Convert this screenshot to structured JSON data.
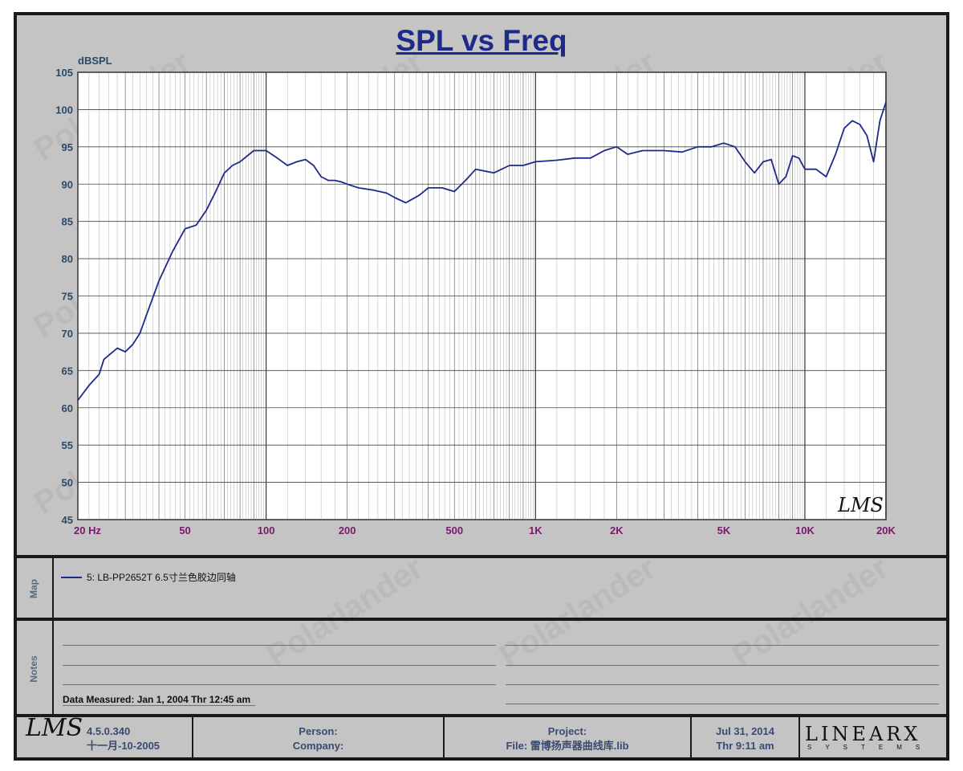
{
  "chart_data": {
    "type": "line",
    "title": "SPL vs Freq",
    "ylabel": "dBSPL",
    "xlabel": "",
    "xscale": "log",
    "xlim": [
      20,
      20000
    ],
    "ylim": [
      45,
      105
    ],
    "yticks": [
      45,
      50,
      55,
      60,
      65,
      70,
      75,
      80,
      85,
      90,
      95,
      100,
      105
    ],
    "xticks": [
      {
        "value": 20,
        "label": "20  Hz"
      },
      {
        "value": 50,
        "label": "50"
      },
      {
        "value": 100,
        "label": "100"
      },
      {
        "value": 200,
        "label": "200"
      },
      {
        "value": 500,
        "label": "500"
      },
      {
        "value": 1000,
        "label": "1K"
      },
      {
        "value": 2000,
        "label": "2K"
      },
      {
        "value": 5000,
        "label": "5K"
      },
      {
        "value": 10000,
        "label": "10K"
      },
      {
        "value": 20000,
        "label": "20K"
      }
    ],
    "grid": true,
    "watermark_logo": "LMS",
    "series": [
      {
        "name": "5: LB-PP2652T 6.5寸兰色胶边同轴",
        "color": "#1e2a8a",
        "x": [
          20,
          22,
          24,
          25,
          27,
          28,
          30,
          32,
          34,
          36,
          40,
          45,
          50,
          55,
          60,
          65,
          70,
          75,
          80,
          90,
          100,
          110,
          120,
          130,
          140,
          150,
          160,
          170,
          180,
          190,
          200,
          220,
          250,
          280,
          300,
          330,
          370,
          400,
          450,
          500,
          550,
          600,
          700,
          800,
          900,
          1000,
          1200,
          1400,
          1600,
          1800,
          2000,
          2200,
          2500,
          3000,
          3500,
          4000,
          4500,
          5000,
          5500,
          6000,
          6500,
          7000,
          7500,
          8000,
          8500,
          9000,
          9500,
          10000,
          11000,
          12000,
          13000,
          14000,
          15000,
          16000,
          17000,
          18000,
          19000,
          20000
        ],
        "y": [
          61,
          63,
          64.5,
          66.5,
          67.5,
          68,
          67.5,
          68.5,
          70,
          72.5,
          77,
          81,
          84,
          84.5,
          86.5,
          89,
          91.5,
          92.5,
          93,
          94.5,
          94.5,
          93.5,
          92.5,
          93,
          93.3,
          92.5,
          91,
          90.5,
          90.5,
          90.3,
          90,
          89.5,
          89.2,
          88.8,
          88.2,
          87.5,
          88.5,
          89.5,
          89.5,
          89,
          90.5,
          92,
          91.5,
          92.5,
          92.5,
          93,
          93.2,
          93.5,
          93.5,
          94.5,
          95,
          94,
          94.5,
          94.5,
          94.3,
          95,
          95,
          95.5,
          95,
          93,
          91.5,
          93,
          93.3,
          90,
          91,
          93.8,
          93.5,
          92,
          92,
          91,
          94,
          97.5,
          98.5,
          98,
          96.5,
          93,
          98.5,
          101
        ]
      }
    ]
  },
  "map": {
    "label": "Map",
    "legend_entry": "5: LB-PP2652T 6.5寸兰色胶边同轴"
  },
  "notes": {
    "label": "Notes",
    "measured": "Data Measured: Jan  1, 2004  Thr 12:45 am"
  },
  "footer": {
    "logo": "LMS",
    "version": "4.5.0.340",
    "build_date": "十一月-10-2005",
    "person_label": "Person:",
    "company_label": "Company:",
    "project_label": "Project:",
    "file_label": "File: 雷博扬声器曲线库.lib",
    "date": "Jul 31, 2014",
    "time": "Thr  9:11 am",
    "brand": "LINEARX",
    "brand_sub": "SYSTEMS"
  },
  "watermark": "Polarlander",
  "colors": {
    "panel": "#c4c4c4",
    "plot_bg": "#ffffff",
    "curve": "#1e2a8a",
    "title": "#1e2a8a",
    "y_tick": "#2a4a6a",
    "x_tick": "#7a1a6a"
  }
}
